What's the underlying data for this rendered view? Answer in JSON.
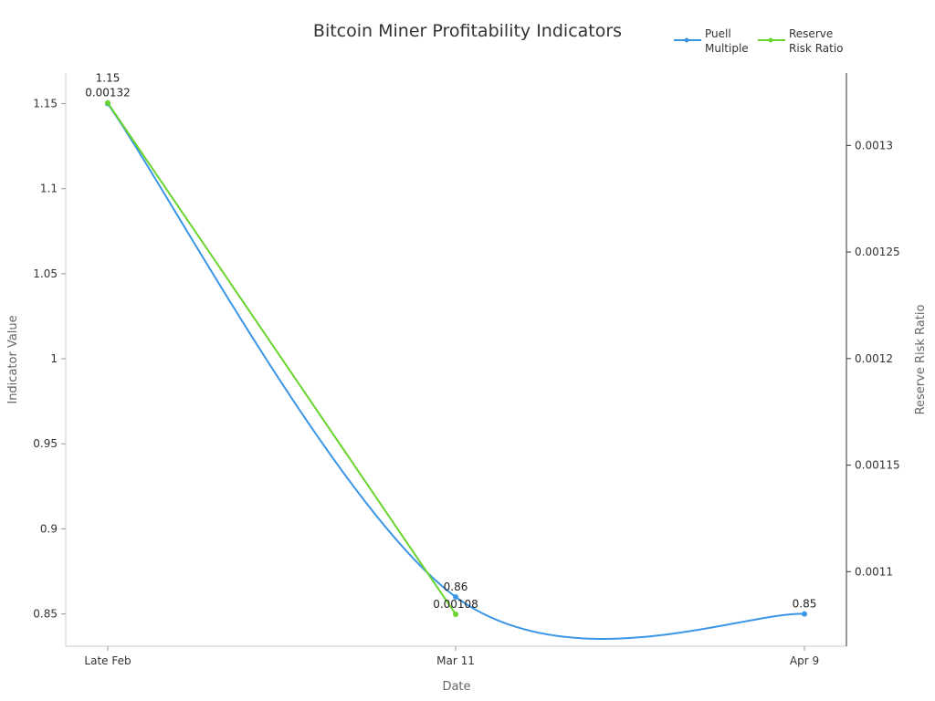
{
  "chart_data": {
    "type": "line",
    "title": "Bitcoin Miner Profitability Indicators",
    "xlabel": "Date",
    "ylabel": "Indicator Value",
    "y2label": "Reserve Risk Ratio",
    "categories": [
      "Late Feb",
      "Mar 11",
      "Apr 9"
    ],
    "ylim": [
      0.831,
      1.168
    ],
    "y2lim": [
      0.001065,
      0.001334
    ],
    "yticks": [
      0.85,
      0.9,
      0.95,
      1,
      1.05,
      1.1,
      1.15
    ],
    "ytick_labels": [
      "0.85",
      "0.9",
      "0.95",
      "1",
      "1.05",
      "1.1",
      "1.15"
    ],
    "y2ticks": [
      0.0011,
      0.00115,
      0.0012,
      0.00125,
      0.0013
    ],
    "y2tick_labels": [
      "0.0011",
      "0.00115",
      "0.0012",
      "0.00125",
      "0.0013"
    ],
    "grid": false,
    "legend_position": "top-right",
    "series": [
      {
        "name": "Puell Multiple",
        "axis": "left",
        "color": "#3b96e6",
        "smooth": true,
        "values": [
          1.15,
          0.86,
          0.85
        ],
        "labels": [
          "1.15",
          "0.86",
          "0.85"
        ]
      },
      {
        "name": "Reserve Risk Ratio",
        "axis": "right",
        "color": "#6ad42e",
        "smooth": false,
        "values": [
          0.00132,
          0.00108,
          null
        ],
        "labels": [
          "0.00132",
          "0.00108",
          null
        ]
      }
    ],
    "legend_labels": [
      [
        "Puell",
        "Multiple"
      ],
      [
        "Reserve",
        "Risk Ratio"
      ]
    ]
  }
}
